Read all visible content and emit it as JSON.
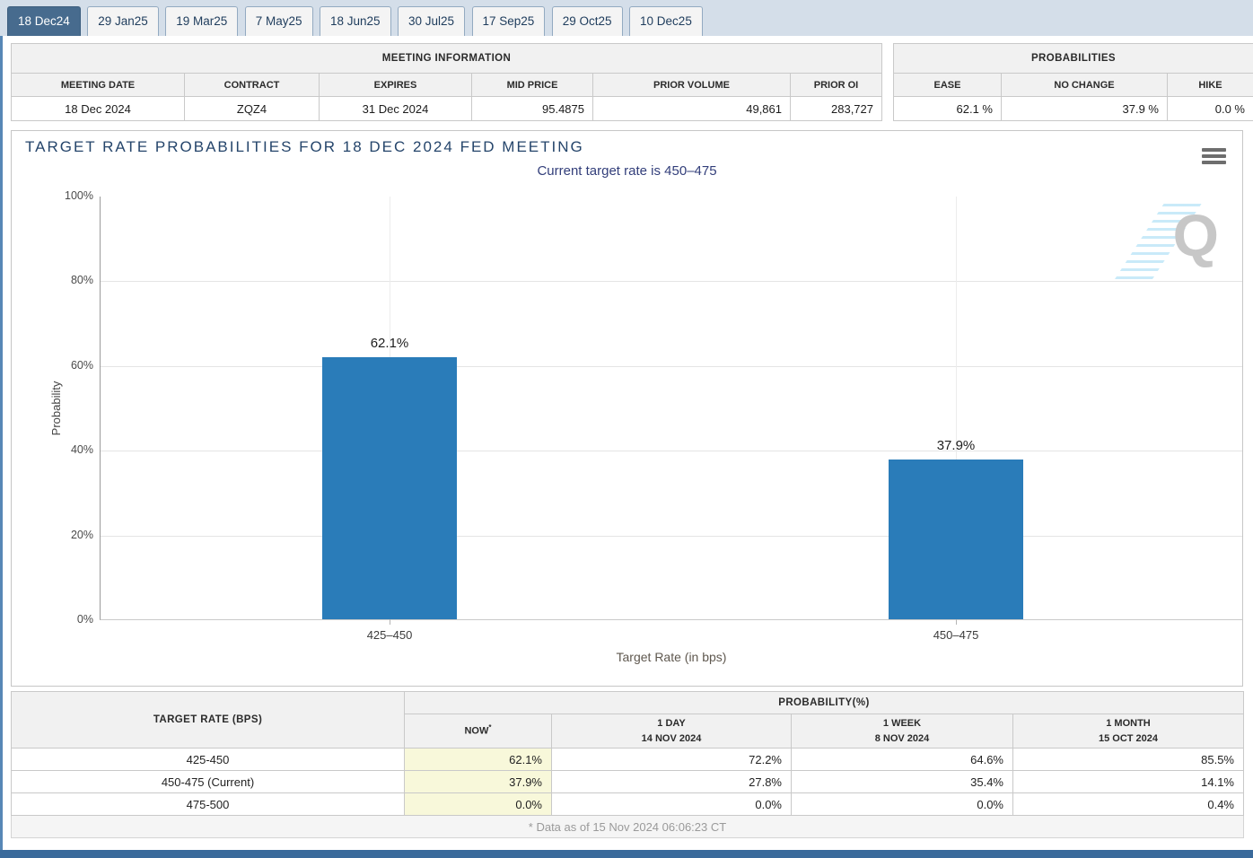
{
  "tabs": {
    "items": [
      {
        "label": "18 Dec24",
        "active": true
      },
      {
        "label": "29 Jan25",
        "active": false
      },
      {
        "label": "19 Mar25",
        "active": false
      },
      {
        "label": "7 May25",
        "active": false
      },
      {
        "label": "18 Jun25",
        "active": false
      },
      {
        "label": "30 Jul25",
        "active": false
      },
      {
        "label": "17 Sep25",
        "active": false
      },
      {
        "label": "29 Oct25",
        "active": false
      },
      {
        "label": "10 Dec25",
        "active": false
      }
    ]
  },
  "meeting_info": {
    "title": "MEETING INFORMATION",
    "columns": [
      "MEETING DATE",
      "CONTRACT",
      "EXPIRES",
      "MID PRICE",
      "PRIOR VOLUME",
      "PRIOR OI"
    ],
    "values": [
      "18 Dec 2024",
      "ZQZ4",
      "31 Dec 2024",
      "95.4875",
      "49,861",
      "283,727"
    ]
  },
  "probabilities": {
    "title": "PROBABILITIES",
    "columns": [
      "EASE",
      "NO CHANGE",
      "HIKE"
    ],
    "values": [
      "62.1 %",
      "37.9 %",
      "0.0 %"
    ]
  },
  "chart": {
    "title": "TARGET RATE PROBABILITIES FOR 18 DEC 2024 FED MEETING",
    "subtitle": "Current target rate is 450–475",
    "ylabel": "Probability",
    "xlabel": "Target Rate (in bps)",
    "yticks": [
      "100%",
      "80%",
      "60%",
      "40%",
      "20%",
      "0%"
    ],
    "bar_color": "#2a7cb9",
    "watermark_letter": "Q"
  },
  "chart_data": {
    "type": "bar",
    "title": "TARGET RATE PROBABILITIES FOR 18 DEC 2024 FED MEETING",
    "subtitle": "Current target rate is 450–475",
    "categories": [
      "425–450",
      "450–475"
    ],
    "values": [
      62.1,
      37.9
    ],
    "value_labels": [
      "62.1%",
      "37.9%"
    ],
    "xlabel": "Target Rate (in bps)",
    "ylabel": "Probability",
    "ylim": [
      0,
      100
    ],
    "ytick_step": 20,
    "grid": true,
    "legend": false
  },
  "history_table": {
    "rate_header": "TARGET RATE (BPS)",
    "group_header": "PROBABILITY(%)",
    "now_label": "NOW",
    "now_sup": "*",
    "period_cols": [
      {
        "label": "1 DAY",
        "date": "14 NOV 2024"
      },
      {
        "label": "1 WEEK",
        "date": "8 NOV 2024"
      },
      {
        "label": "1 MONTH",
        "date": "15 OCT 2024"
      }
    ],
    "rows": [
      {
        "rate": "425-450",
        "now": "62.1%",
        "day": "72.2%",
        "week": "64.6%",
        "month": "85.5%"
      },
      {
        "rate": "450-475 (Current)",
        "now": "37.9%",
        "day": "27.8%",
        "week": "35.4%",
        "month": "14.1%"
      },
      {
        "rate": "475-500",
        "now": "0.0%",
        "day": "0.0%",
        "week": "0.0%",
        "month": "0.4%"
      }
    ],
    "footnote": "* Data as of 15 Nov 2024 06:06:23 CT"
  }
}
